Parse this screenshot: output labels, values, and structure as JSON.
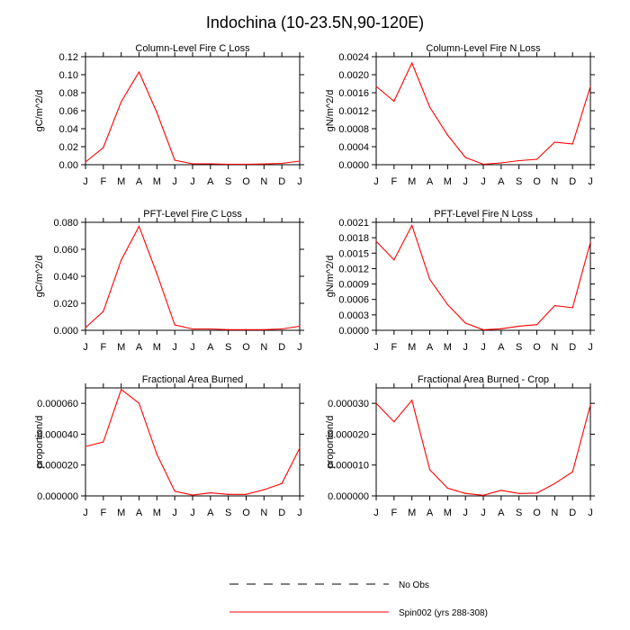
{
  "page_title": "Indochina (10-23.5N,90-120E)",
  "legend": {
    "entries": [
      {
        "label": "No Obs",
        "style": "dashed",
        "color": "#000000"
      },
      {
        "label": "Spin002 (yrs 288-308)",
        "style": "solid",
        "color": "#ff0000"
      }
    ]
  },
  "chart_data": [
    {
      "type": "line",
      "title": "Column-Level Fire C Loss",
      "xlabel": "",
      "ylabel": "gC/m^2/d",
      "categories": [
        "J",
        "F",
        "M",
        "A",
        "M",
        "J",
        "J",
        "A",
        "S",
        "O",
        "N",
        "D",
        "J"
      ],
      "ylim": [
        0,
        0.12
      ],
      "yticks": [
        "0.00",
        "0.02",
        "0.04",
        "0.06",
        "0.08",
        "0.10",
        "0.12"
      ],
      "grid": false,
      "series": [
        {
          "name": "Spin002 (yrs 288-308)",
          "color": "#ff0000",
          "values": [
            0.003,
            0.019,
            0.07,
            0.103,
            0.058,
            0.005,
            0.001,
            0.001,
            0.0005,
            0.0005,
            0.0008,
            0.0015,
            0.004
          ]
        }
      ]
    },
    {
      "type": "line",
      "title": "Column-Level Fire N Loss",
      "xlabel": "",
      "ylabel": "gN/m^2/d",
      "categories": [
        "J",
        "F",
        "M",
        "A",
        "M",
        "J",
        "J",
        "A",
        "S",
        "O",
        "N",
        "D",
        "J"
      ],
      "ylim": [
        0,
        0.0024
      ],
      "yticks": [
        "0.0000",
        "0.0004",
        "0.0008",
        "0.0012",
        "0.0016",
        "0.0020",
        "0.0024"
      ],
      "grid": false,
      "series": [
        {
          "name": "Spin002 (yrs 288-308)",
          "color": "#ff0000",
          "values": [
            0.00174,
            0.00141,
            0.00226,
            0.00128,
            0.00066,
            0.00016,
            1e-05,
            4e-05,
            9e-05,
            0.00012,
            0.0005,
            0.00046,
            0.00174
          ]
        }
      ]
    },
    {
      "type": "line",
      "title": "PFT-Level Fire C Loss",
      "xlabel": "",
      "ylabel": "gC/m^2/d",
      "categories": [
        "J",
        "F",
        "M",
        "A",
        "M",
        "J",
        "J",
        "A",
        "S",
        "O",
        "N",
        "D",
        "J"
      ],
      "ylim": [
        0,
        0.08
      ],
      "yticks": [
        "0.000",
        "0.020",
        "0.040",
        "0.060",
        "0.080"
      ],
      "grid": false,
      "series": [
        {
          "name": "Spin002 (yrs 288-308)",
          "color": "#ff0000",
          "values": [
            0.002,
            0.014,
            0.052,
            0.077,
            0.042,
            0.004,
            0.001,
            0.001,
            0.0005,
            0.0005,
            0.0005,
            0.001,
            0.003
          ]
        }
      ]
    },
    {
      "type": "line",
      "title": "PFT-Level Fire N Loss",
      "xlabel": "",
      "ylabel": "gN/m^2/d",
      "categories": [
        "J",
        "F",
        "M",
        "A",
        "M",
        "J",
        "J",
        "A",
        "S",
        "O",
        "N",
        "D",
        "J"
      ],
      "ylim": [
        0,
        0.0021
      ],
      "yticks": [
        "0.0000",
        "0.0003",
        "0.0006",
        "0.0009",
        "0.0012",
        "0.0015",
        "0.0018",
        "0.0021"
      ],
      "grid": false,
      "series": [
        {
          "name": "Spin002 (yrs 288-308)",
          "color": "#ff0000",
          "values": [
            0.00173,
            0.00137,
            0.00204,
            0.00099,
            0.0005,
            0.00014,
            1e-05,
            3e-05,
            8e-05,
            0.00011,
            0.00048,
            0.00044,
            0.00171
          ]
        }
      ]
    },
    {
      "type": "line",
      "title": "Fractional Area Burned",
      "xlabel": "",
      "ylabel": "proportion/d",
      "categories": [
        "J",
        "F",
        "M",
        "A",
        "M",
        "J",
        "J",
        "A",
        "S",
        "O",
        "N",
        "D",
        "J"
      ],
      "ylim": [
        0,
        7e-05
      ],
      "yticks": [
        "0.000000",
        "0.000020",
        "0.000040",
        "0.000060"
      ],
      "ytick_values": [
        0,
        2e-05,
        4e-05,
        6e-05
      ],
      "grid": false,
      "series": [
        {
          "name": "Spin002 (yrs 288-308)",
          "color": "#ff0000",
          "values": [
            3.2e-05,
            3.5e-05,
            6.9e-05,
            6e-05,
            2.7e-05,
            3e-06,
            5e-07,
            2e-06,
            1e-06,
            1e-06,
            4e-06,
            8e-06,
            3.1e-05
          ]
        }
      ]
    },
    {
      "type": "line",
      "title": "Fractional Area Burned - Crop",
      "xlabel": "",
      "ylabel": "proportion/d",
      "categories": [
        "J",
        "F",
        "M",
        "A",
        "M",
        "J",
        "J",
        "A",
        "S",
        "O",
        "N",
        "D",
        "J"
      ],
      "ylim": [
        0,
        3.5e-05
      ],
      "yticks": [
        "0.000000",
        "0.000010",
        "0.000020",
        "0.000030"
      ],
      "ytick_values": [
        0,
        1e-05,
        2e-05,
        3e-05
      ],
      "grid": false,
      "series": [
        {
          "name": "Spin002 (yrs 288-308)",
          "color": "#ff0000",
          "values": [
            3e-05,
            2.4e-05,
            3.1e-05,
            8.5e-06,
            2.5e-06,
            8e-07,
            2e-07,
            1.8e-06,
            8e-07,
            9e-07,
            4e-06,
            7.8e-06,
            2.95e-05
          ]
        }
      ]
    }
  ]
}
